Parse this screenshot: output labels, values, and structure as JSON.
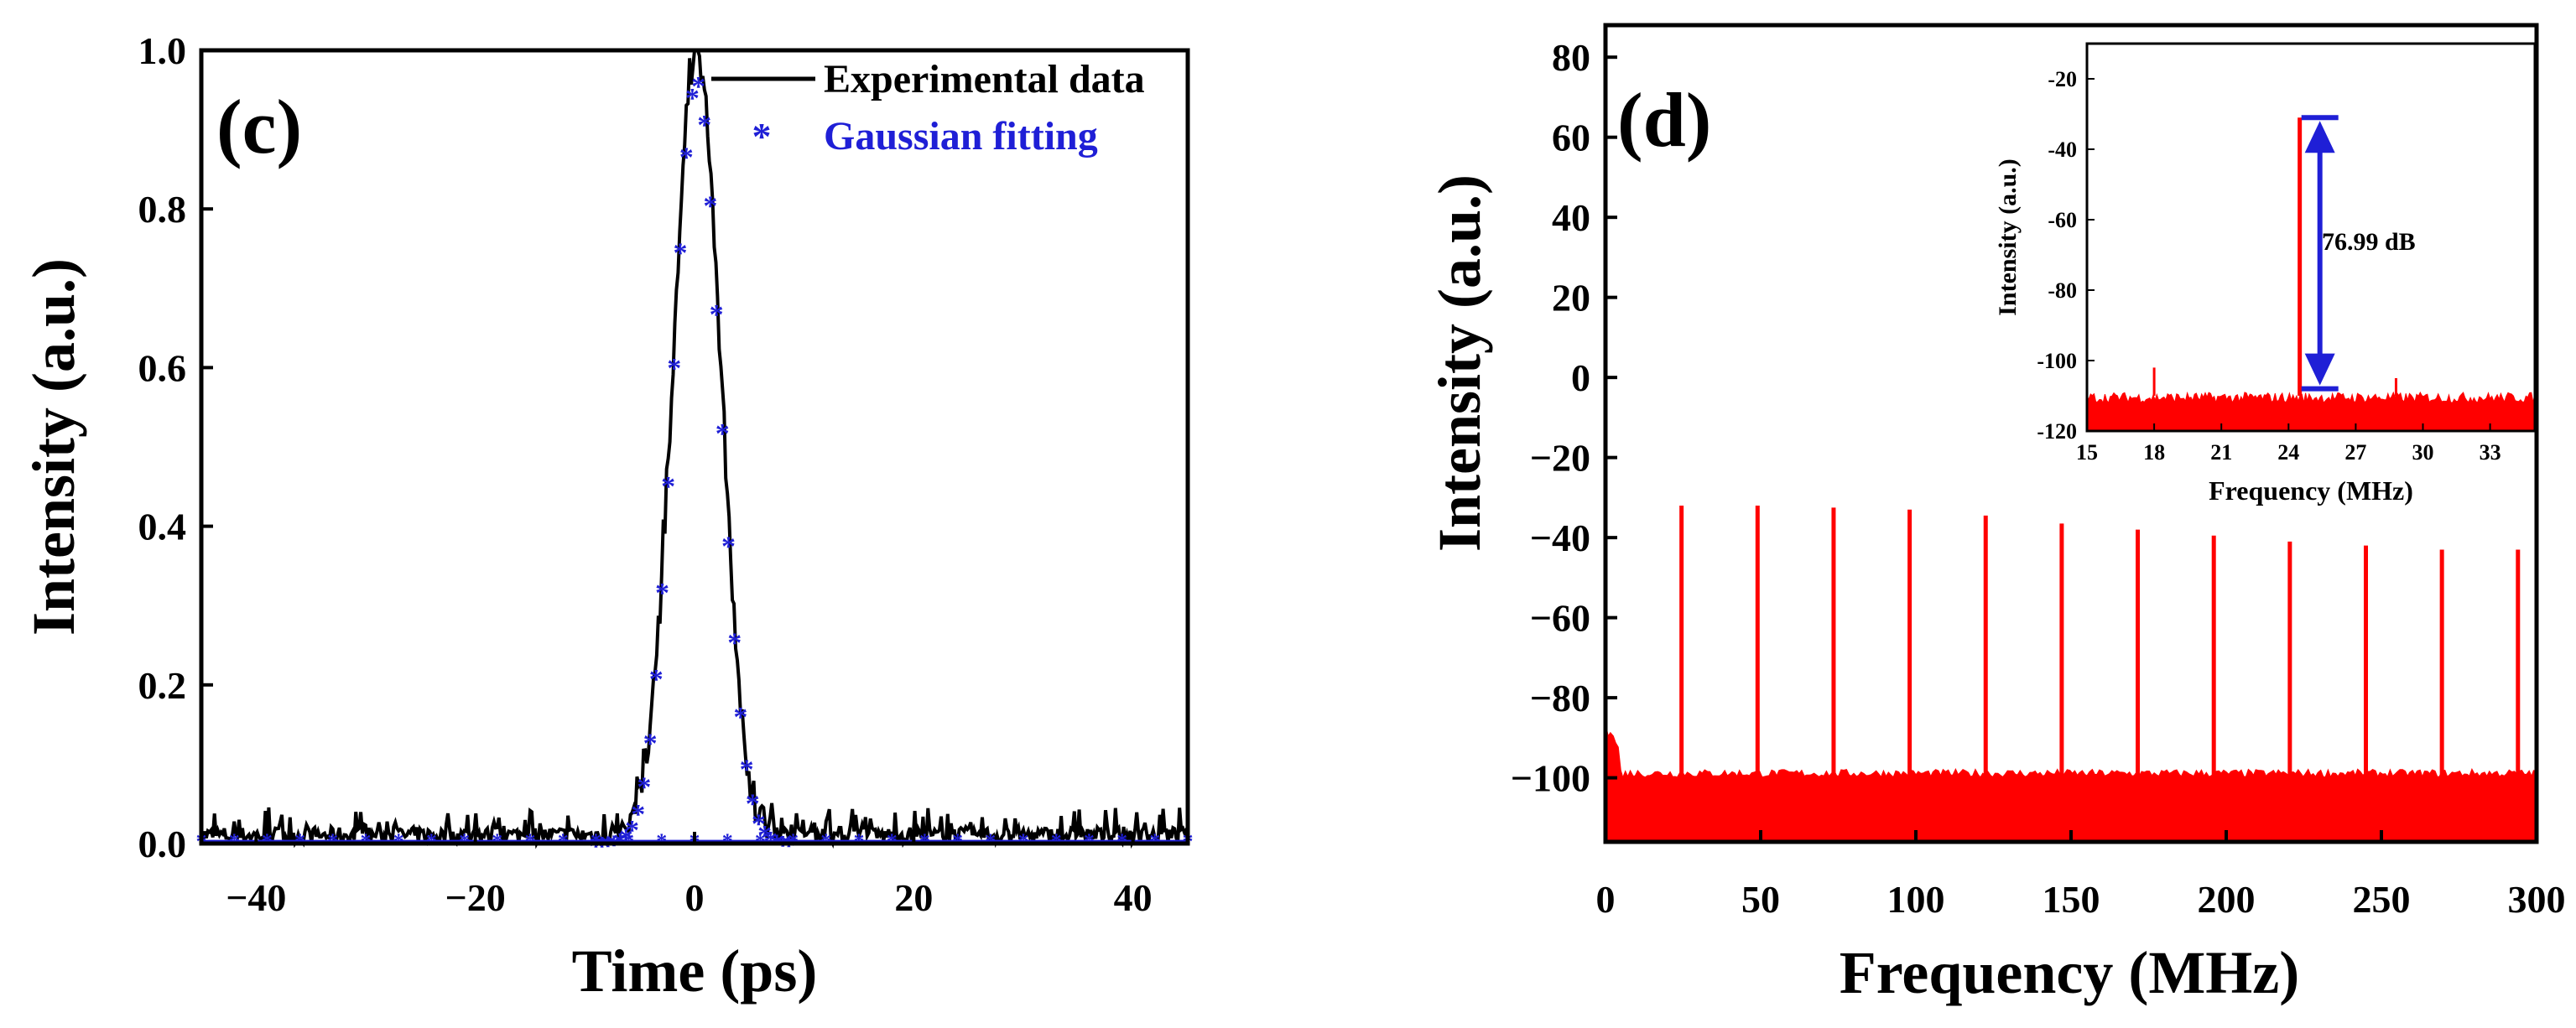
{
  "chart_data": [
    {
      "type": "line",
      "panel_label": "(c)",
      "xlabel": "Time (ps)",
      "ylabel": "Intensity (a.u.)",
      "xlim": [
        -45,
        45
      ],
      "ylim": [
        0,
        1.0
      ],
      "x_ticks": [
        -40,
        -20,
        0,
        20,
        40
      ],
      "x_tick_labels": [
        "−40",
        "−20",
        "0",
        "20",
        "40"
      ],
      "y_ticks": [
        0.0,
        0.2,
        0.4,
        0.6,
        0.8,
        1.0
      ],
      "y_tick_labels": [
        "0.0",
        "0.2",
        "0.4",
        "0.6",
        "0.8",
        "1.0"
      ],
      "legend_position": "top-right",
      "series": [
        {
          "name": "Experimental data",
          "style": "line",
          "color": "#000000",
          "noise_floor": [
            0.0,
            0.035
          ],
          "peak_x": 0.2,
          "peak_y": 0.99,
          "fwhm_ps": 5.0
        },
        {
          "name": "Gaussian fitting",
          "style": "asterisk-markers",
          "color": "#1f1fd6",
          "peak_x": 0.2,
          "peak_y": 0.96,
          "fwhm_ps": 5.0,
          "baseline": 0.0
        }
      ]
    },
    {
      "type": "line",
      "panel_label": "(d)",
      "xlabel": "Frequency (MHz)",
      "ylabel": "Intensity (a.u.)",
      "xlim": [
        0,
        300
      ],
      "ylim": [
        -116,
        88
      ],
      "x_ticks": [
        0,
        50,
        100,
        150,
        200,
        250,
        300
      ],
      "x_tick_labels": [
        "0",
        "50",
        "100",
        "150",
        "200",
        "250",
        "300"
      ],
      "y_ticks": [
        -100,
        -80,
        -60,
        -40,
        -20,
        0,
        20,
        40,
        60,
        80
      ],
      "y_tick_labels": [
        "−100",
        "−80",
        "−60",
        "−40",
        "−20",
        "0",
        "20",
        "40",
        "60",
        "80"
      ],
      "color": "#ff0000",
      "noise_floor": [
        -100,
        -98
      ],
      "harmonics": {
        "frequencies_mhz": [
          24.5,
          49.0,
          73.5,
          98.0,
          122.5,
          147.0,
          171.5,
          196.0,
          220.5,
          245.0,
          269.5,
          294.0
        ],
        "peak_db": [
          -32,
          -32,
          -32.5,
          -33,
          -34.5,
          -36.5,
          -38,
          -39.5,
          -41,
          -42,
          -43,
          -43
        ]
      },
      "inset": {
        "type": "line",
        "xlabel": "Frequency (MHz)",
        "ylabel": "Intensity (a.u.)",
        "xlim": [
          15,
          35
        ],
        "ylim": [
          -120,
          -10
        ],
        "x_ticks": [
          15,
          18,
          21,
          24,
          27,
          30,
          33
        ],
        "x_tick_labels": [
          "15",
          "18",
          "21",
          "24",
          "27",
          "30",
          "33"
        ],
        "y_ticks": [
          -120,
          -100,
          -80,
          -60,
          -40,
          -20
        ],
        "y_tick_labels": [
          "-120",
          "-100",
          "-80",
          "-60",
          "-40",
          "-20"
        ],
        "noise_floor": [
          -112,
          -109
        ],
        "main_peak": {
          "x": 24.5,
          "y": -31
        },
        "side_spurs": [
          {
            "x": 18.0,
            "y": -102
          },
          {
            "x": 28.8,
            "y": -105
          }
        ],
        "snr_annotation": {
          "text": "76.99 dB",
          "value_db": 76.99,
          "arrow_from": -31,
          "arrow_to": -108,
          "arrow_x": 25.4,
          "arrow_color": "#1f1fd6"
        }
      }
    }
  ]
}
